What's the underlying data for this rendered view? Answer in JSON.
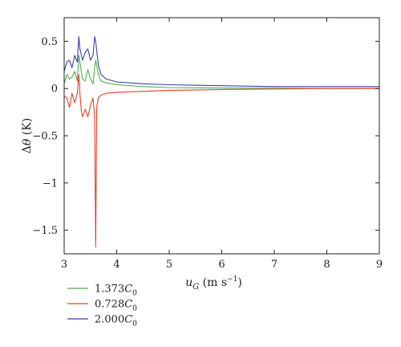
{
  "chart_data": {
    "type": "line",
    "xlabel": "u_G (m s⁻¹)",
    "xlabel_parts": {
      "main": "u",
      "sub": "G",
      "units_pre": " (m s",
      "units_sup": "−1",
      "units_post": ")"
    },
    "ylabel": "Δθ (K)",
    "xlim": [
      3,
      9
    ],
    "ylim": [
      -1.75,
      0.75
    ],
    "xticks": [
      3,
      4,
      5,
      6,
      7,
      8,
      9
    ],
    "yticks": [
      -1.5,
      -1,
      -0.5,
      0,
      0.5
    ],
    "xtick_labels": [
      "3",
      "4",
      "5",
      "6",
      "7",
      "8",
      "9"
    ],
    "ytick_labels": [
      "−1.5",
      "−1",
      "−0.5",
      "0",
      "0.5"
    ],
    "grid": false,
    "legend_position": "below",
    "series": [
      {
        "name": "1.373C0",
        "label_num": "1.373",
        "label_var": "C",
        "label_sub": "0",
        "color": "#4caf50",
        "x": [
          3.0,
          3.05,
          3.1,
          3.15,
          3.2,
          3.25,
          3.28,
          3.3,
          3.35,
          3.4,
          3.45,
          3.5,
          3.55,
          3.58,
          3.6,
          3.65,
          3.7,
          3.8,
          4.0,
          4.5,
          5.0,
          6.0,
          7.0,
          8.0,
          9.0
        ],
        "y": [
          0.05,
          0.15,
          0.1,
          0.12,
          0.18,
          0.08,
          0.35,
          0.28,
          0.1,
          0.08,
          0.2,
          0.1,
          0.05,
          0.22,
          0.3,
          0.15,
          0.08,
          0.06,
          0.04,
          0.02,
          0.01,
          0.005,
          0.003,
          0.0,
          0.0
        ]
      },
      {
        "name": "0.728C0",
        "label_num": "0.728",
        "label_var": "C",
        "label_sub": "0",
        "color": "#e8402a",
        "x": [
          3.0,
          3.05,
          3.1,
          3.15,
          3.2,
          3.25,
          3.28,
          3.3,
          3.33,
          3.35,
          3.4,
          3.45,
          3.5,
          3.55,
          3.58,
          3.6,
          3.62,
          3.65,
          3.7,
          3.8,
          4.0,
          4.5,
          5.0,
          6.0,
          7.0,
          8.0,
          9.0
        ],
        "y": [
          -0.08,
          -0.1,
          -0.2,
          -0.05,
          -0.15,
          -0.05,
          0.15,
          -0.05,
          -0.25,
          -0.3,
          -0.22,
          -0.3,
          -0.18,
          -0.1,
          -0.3,
          -1.68,
          -0.2,
          -0.1,
          -0.07,
          -0.05,
          -0.04,
          -0.03,
          -0.02,
          -0.01,
          -0.005,
          0.0,
          0.0
        ]
      },
      {
        "name": "2.000C0",
        "label_num": "2.000",
        "label_var": "C",
        "label_sub": "0",
        "color": "#3b3fa8",
        "x": [
          3.0,
          3.05,
          3.1,
          3.15,
          3.2,
          3.25,
          3.28,
          3.3,
          3.35,
          3.4,
          3.45,
          3.5,
          3.55,
          3.58,
          3.6,
          3.65,
          3.7,
          3.8,
          4.0,
          4.5,
          5.0,
          6.0,
          7.0,
          8.0,
          9.0
        ],
        "y": [
          0.18,
          0.28,
          0.3,
          0.22,
          0.35,
          0.28,
          0.55,
          0.42,
          0.3,
          0.38,
          0.42,
          0.3,
          0.35,
          0.55,
          0.5,
          0.25,
          0.15,
          0.1,
          0.07,
          0.05,
          0.04,
          0.03,
          0.02,
          0.02,
          0.02
        ]
      }
    ]
  }
}
